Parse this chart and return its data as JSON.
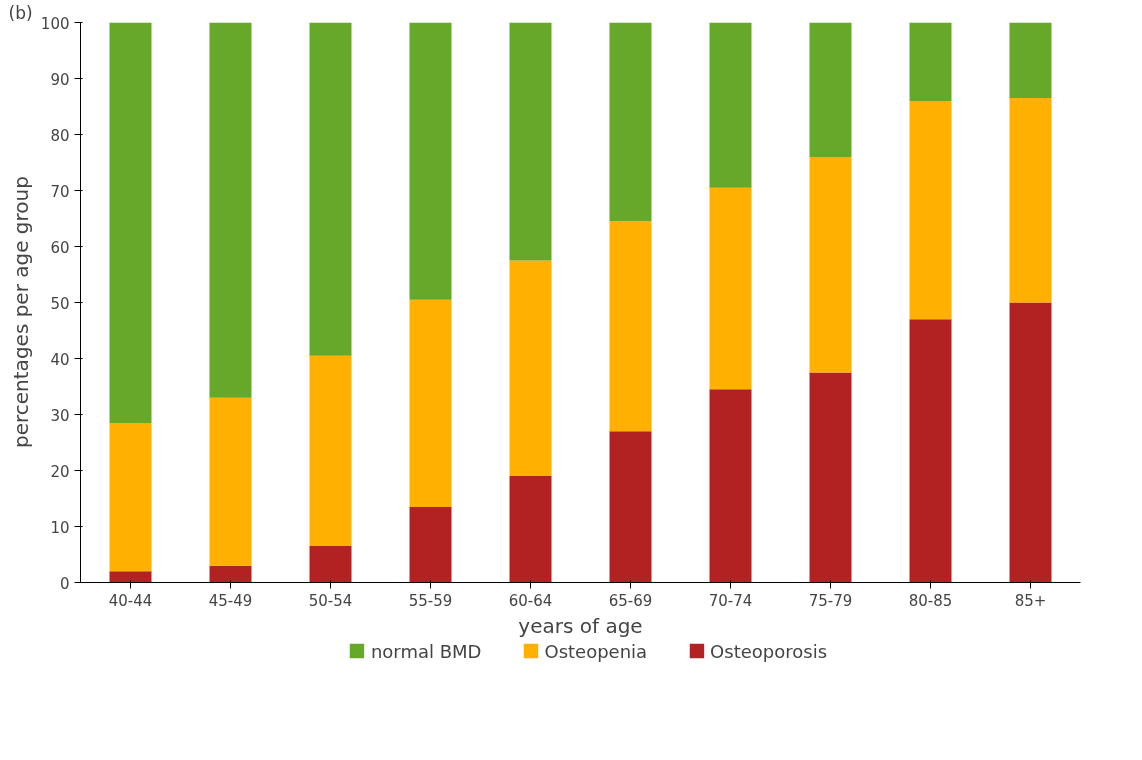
{
  "chart_data": {
    "type": "bar",
    "stacked": true,
    "xlabel": "years of age",
    "ylabel": "percentages  per  age  group",
    "annotations": [
      "(b)"
    ],
    "categories": [
      "40-44",
      "45-49",
      "50-54",
      "55-59",
      "60-64",
      "65-69",
      "70-74",
      "75-79",
      "80-85",
      "85+"
    ],
    "series": [
      {
        "name": "Osteoporosis",
        "color": "#b22222",
        "values": [
          2,
          3,
          6.5,
          13.5,
          19,
          27,
          34.5,
          37.5,
          47,
          50
        ]
      },
      {
        "name": "Osteopenia",
        "color": "#ffb000",
        "values": [
          26.5,
          30,
          34,
          37,
          38.5,
          37.5,
          36,
          38.5,
          39,
          36.5
        ]
      },
      {
        "name": "normal BMD",
        "color": "#66a82a",
        "values": [
          71.5,
          67,
          59.5,
          49.5,
          42.5,
          35.5,
          29.5,
          24,
          14,
          13.5
        ]
      }
    ],
    "ylim": [
      0,
      100
    ],
    "yticks": [
      0,
      10,
      20,
      30,
      40,
      50,
      60,
      70,
      80,
      90,
      100
    ],
    "grid": false,
    "legend": "bottom"
  }
}
